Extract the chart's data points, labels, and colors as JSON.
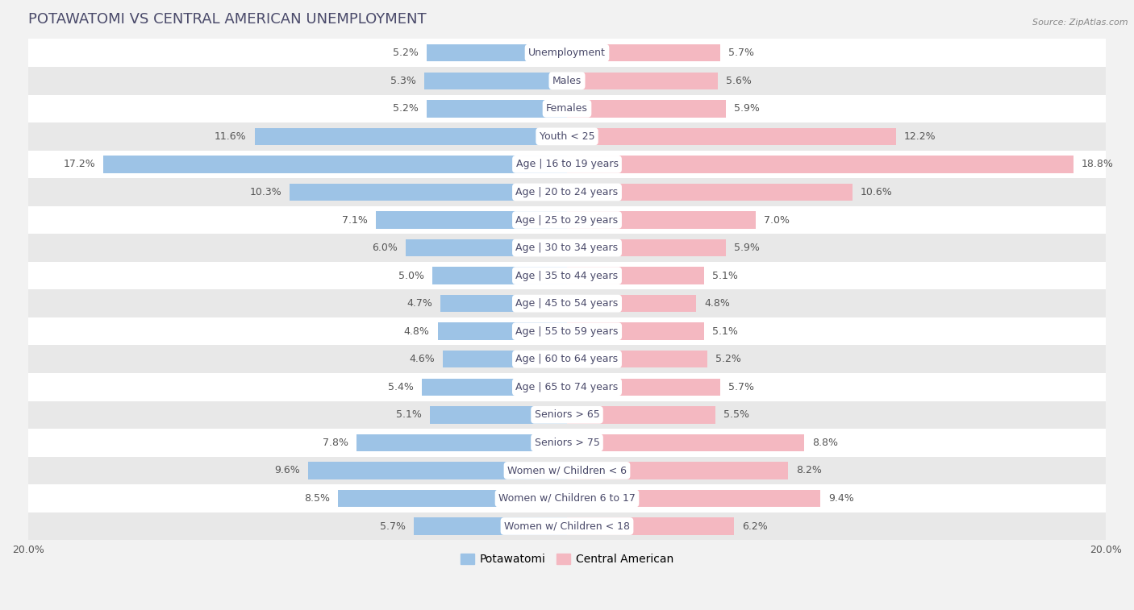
{
  "title": "POTAWATOMI VS CENTRAL AMERICAN UNEMPLOYMENT",
  "source": "Source: ZipAtlas.com",
  "categories": [
    "Unemployment",
    "Males",
    "Females",
    "Youth < 25",
    "Age | 16 to 19 years",
    "Age | 20 to 24 years",
    "Age | 25 to 29 years",
    "Age | 30 to 34 years",
    "Age | 35 to 44 years",
    "Age | 45 to 54 years",
    "Age | 55 to 59 years",
    "Age | 60 to 64 years",
    "Age | 65 to 74 years",
    "Seniors > 65",
    "Seniors > 75",
    "Women w/ Children < 6",
    "Women w/ Children 6 to 17",
    "Women w/ Children < 18"
  ],
  "potawatomi": [
    5.2,
    5.3,
    5.2,
    11.6,
    17.2,
    10.3,
    7.1,
    6.0,
    5.0,
    4.7,
    4.8,
    4.6,
    5.4,
    5.1,
    7.8,
    9.6,
    8.5,
    5.7
  ],
  "central_american": [
    5.7,
    5.6,
    5.9,
    12.2,
    18.8,
    10.6,
    7.0,
    5.9,
    5.1,
    4.8,
    5.1,
    5.2,
    5.7,
    5.5,
    8.8,
    8.2,
    9.4,
    6.2
  ],
  "potawatomi_color": "#9dc3e6",
  "central_american_color": "#f4b8c1",
  "axis_max": 20.0,
  "background_color": "#f2f2f2",
  "row_bg_light": "#ffffff",
  "row_bg_dark": "#e8e8e8",
  "title_color": "#4a4a6a",
  "label_color": "#4a4a6a",
  "value_color": "#555555"
}
